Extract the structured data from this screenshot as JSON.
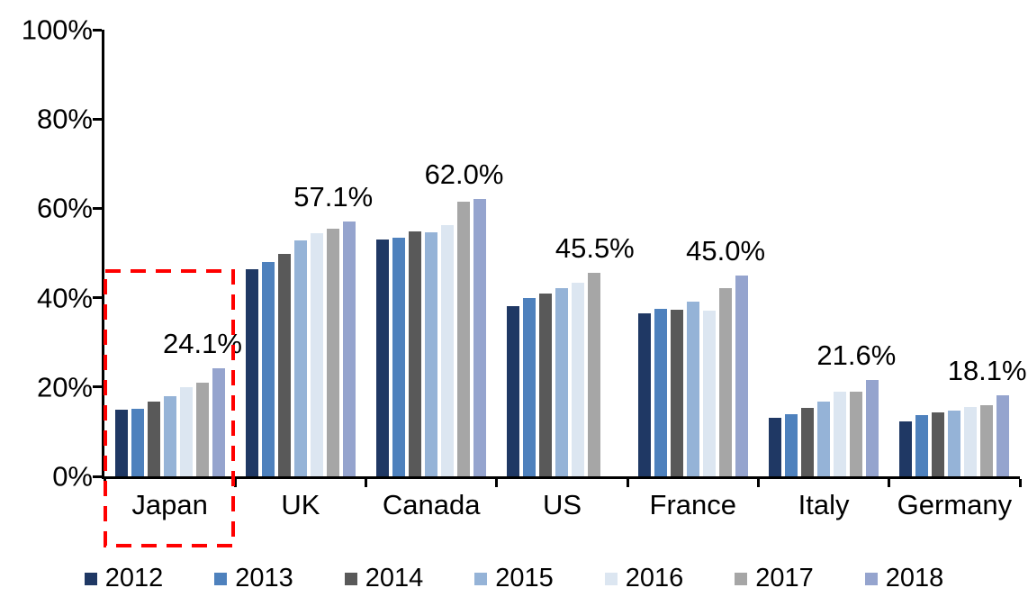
{
  "chart_data": {
    "type": "bar",
    "title": "",
    "xlabel": "",
    "ylabel": "",
    "ylim": [
      0,
      100
    ],
    "grid": false,
    "legend_position": "bottom",
    "y_ticks": [
      "100%",
      "80%",
      "60%",
      "40%",
      "20%",
      "0%"
    ],
    "categories": [
      "Japan",
      "UK",
      "Canada",
      "US",
      "France",
      "Italy",
      "Germany"
    ],
    "series": [
      {
        "name": "2012",
        "color": "#1F3864",
        "values": [
          15.0,
          46.3,
          53.1,
          38.1,
          36.4,
          13.2,
          12.4
        ]
      },
      {
        "name": "2013",
        "color": "#4E81BD",
        "values": [
          15.1,
          47.9,
          53.4,
          40.0,
          37.6,
          14.0,
          13.8
        ]
      },
      {
        "name": "2014",
        "color": "#595959",
        "values": [
          16.7,
          49.8,
          54.9,
          41.0,
          37.4,
          15.3,
          14.3
        ]
      },
      {
        "name": "2015",
        "color": "#95B3D7",
        "values": [
          18.0,
          52.9,
          54.7,
          42.1,
          39.1,
          16.8,
          14.8
        ]
      },
      {
        "name": "2016",
        "color": "#DCE6F1",
        "values": [
          20.0,
          54.4,
          56.2,
          43.4,
          37.1,
          18.9,
          15.5
        ]
      },
      {
        "name": "2017",
        "color": "#A6A6A6",
        "values": [
          21.0,
          55.5,
          61.5,
          45.5,
          42.2,
          19.0,
          16.0
        ]
      },
      {
        "name": "2018",
        "color": "#95A4CE",
        "values": [
          24.1,
          57.1,
          62.0,
          null,
          45.0,
          21.6,
          18.1
        ]
      }
    ],
    "data_labels": [
      "24.1%",
      "57.1%",
      "62.0%",
      "45.5%",
      "45.0%",
      "21.6%",
      "18.1%"
    ],
    "annotations": [
      {
        "type": "highlight-box",
        "target": "Japan",
        "style": "dashed",
        "color": "#FF0000"
      }
    ],
    "axis_color": "#000000",
    "background_color": "#FFFFFF"
  }
}
